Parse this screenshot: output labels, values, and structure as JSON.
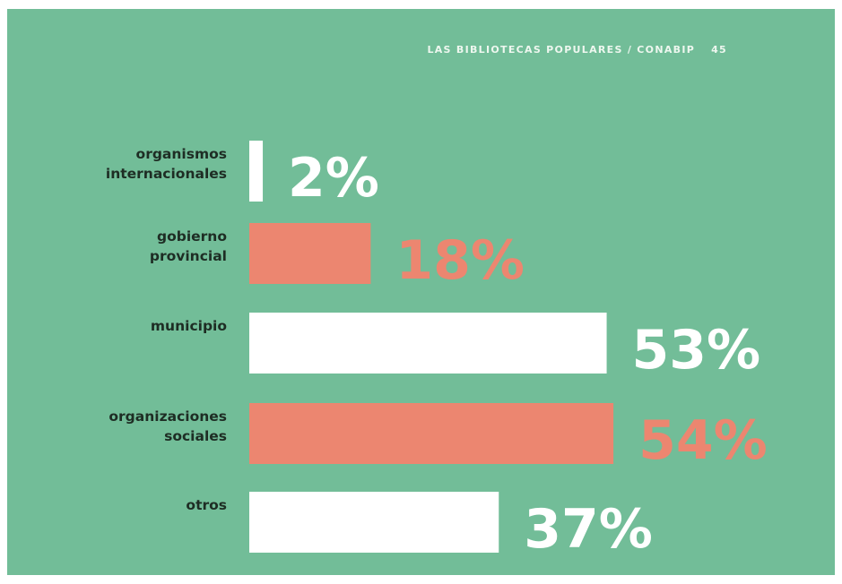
{
  "header": {
    "running_title": "LAS BIBLIOTECAS POPULARES / CONABIP",
    "page_number": "45"
  },
  "colors": {
    "background": "#72bd98",
    "bar_white": "#ffffff",
    "bar_salmon": "#ec8670",
    "label_text": "#1e2d24"
  },
  "chart_data": {
    "type": "bar",
    "orientation": "horizontal",
    "categories": [
      [
        "organismos",
        "internacionales"
      ],
      [
        "gobierno",
        "provincial"
      ],
      [
        "municipio"
      ],
      [
        "organizaciones",
        "sociales"
      ],
      [
        "otros"
      ]
    ],
    "values": [
      2,
      18,
      53,
      54,
      37
    ],
    "value_labels": [
      "2%",
      "18%",
      "53%",
      "54%",
      "37%"
    ],
    "bar_colors": [
      "#ffffff",
      "#ec8670",
      "#ffffff",
      "#ec8670",
      "#ffffff"
    ],
    "unit": "%"
  }
}
